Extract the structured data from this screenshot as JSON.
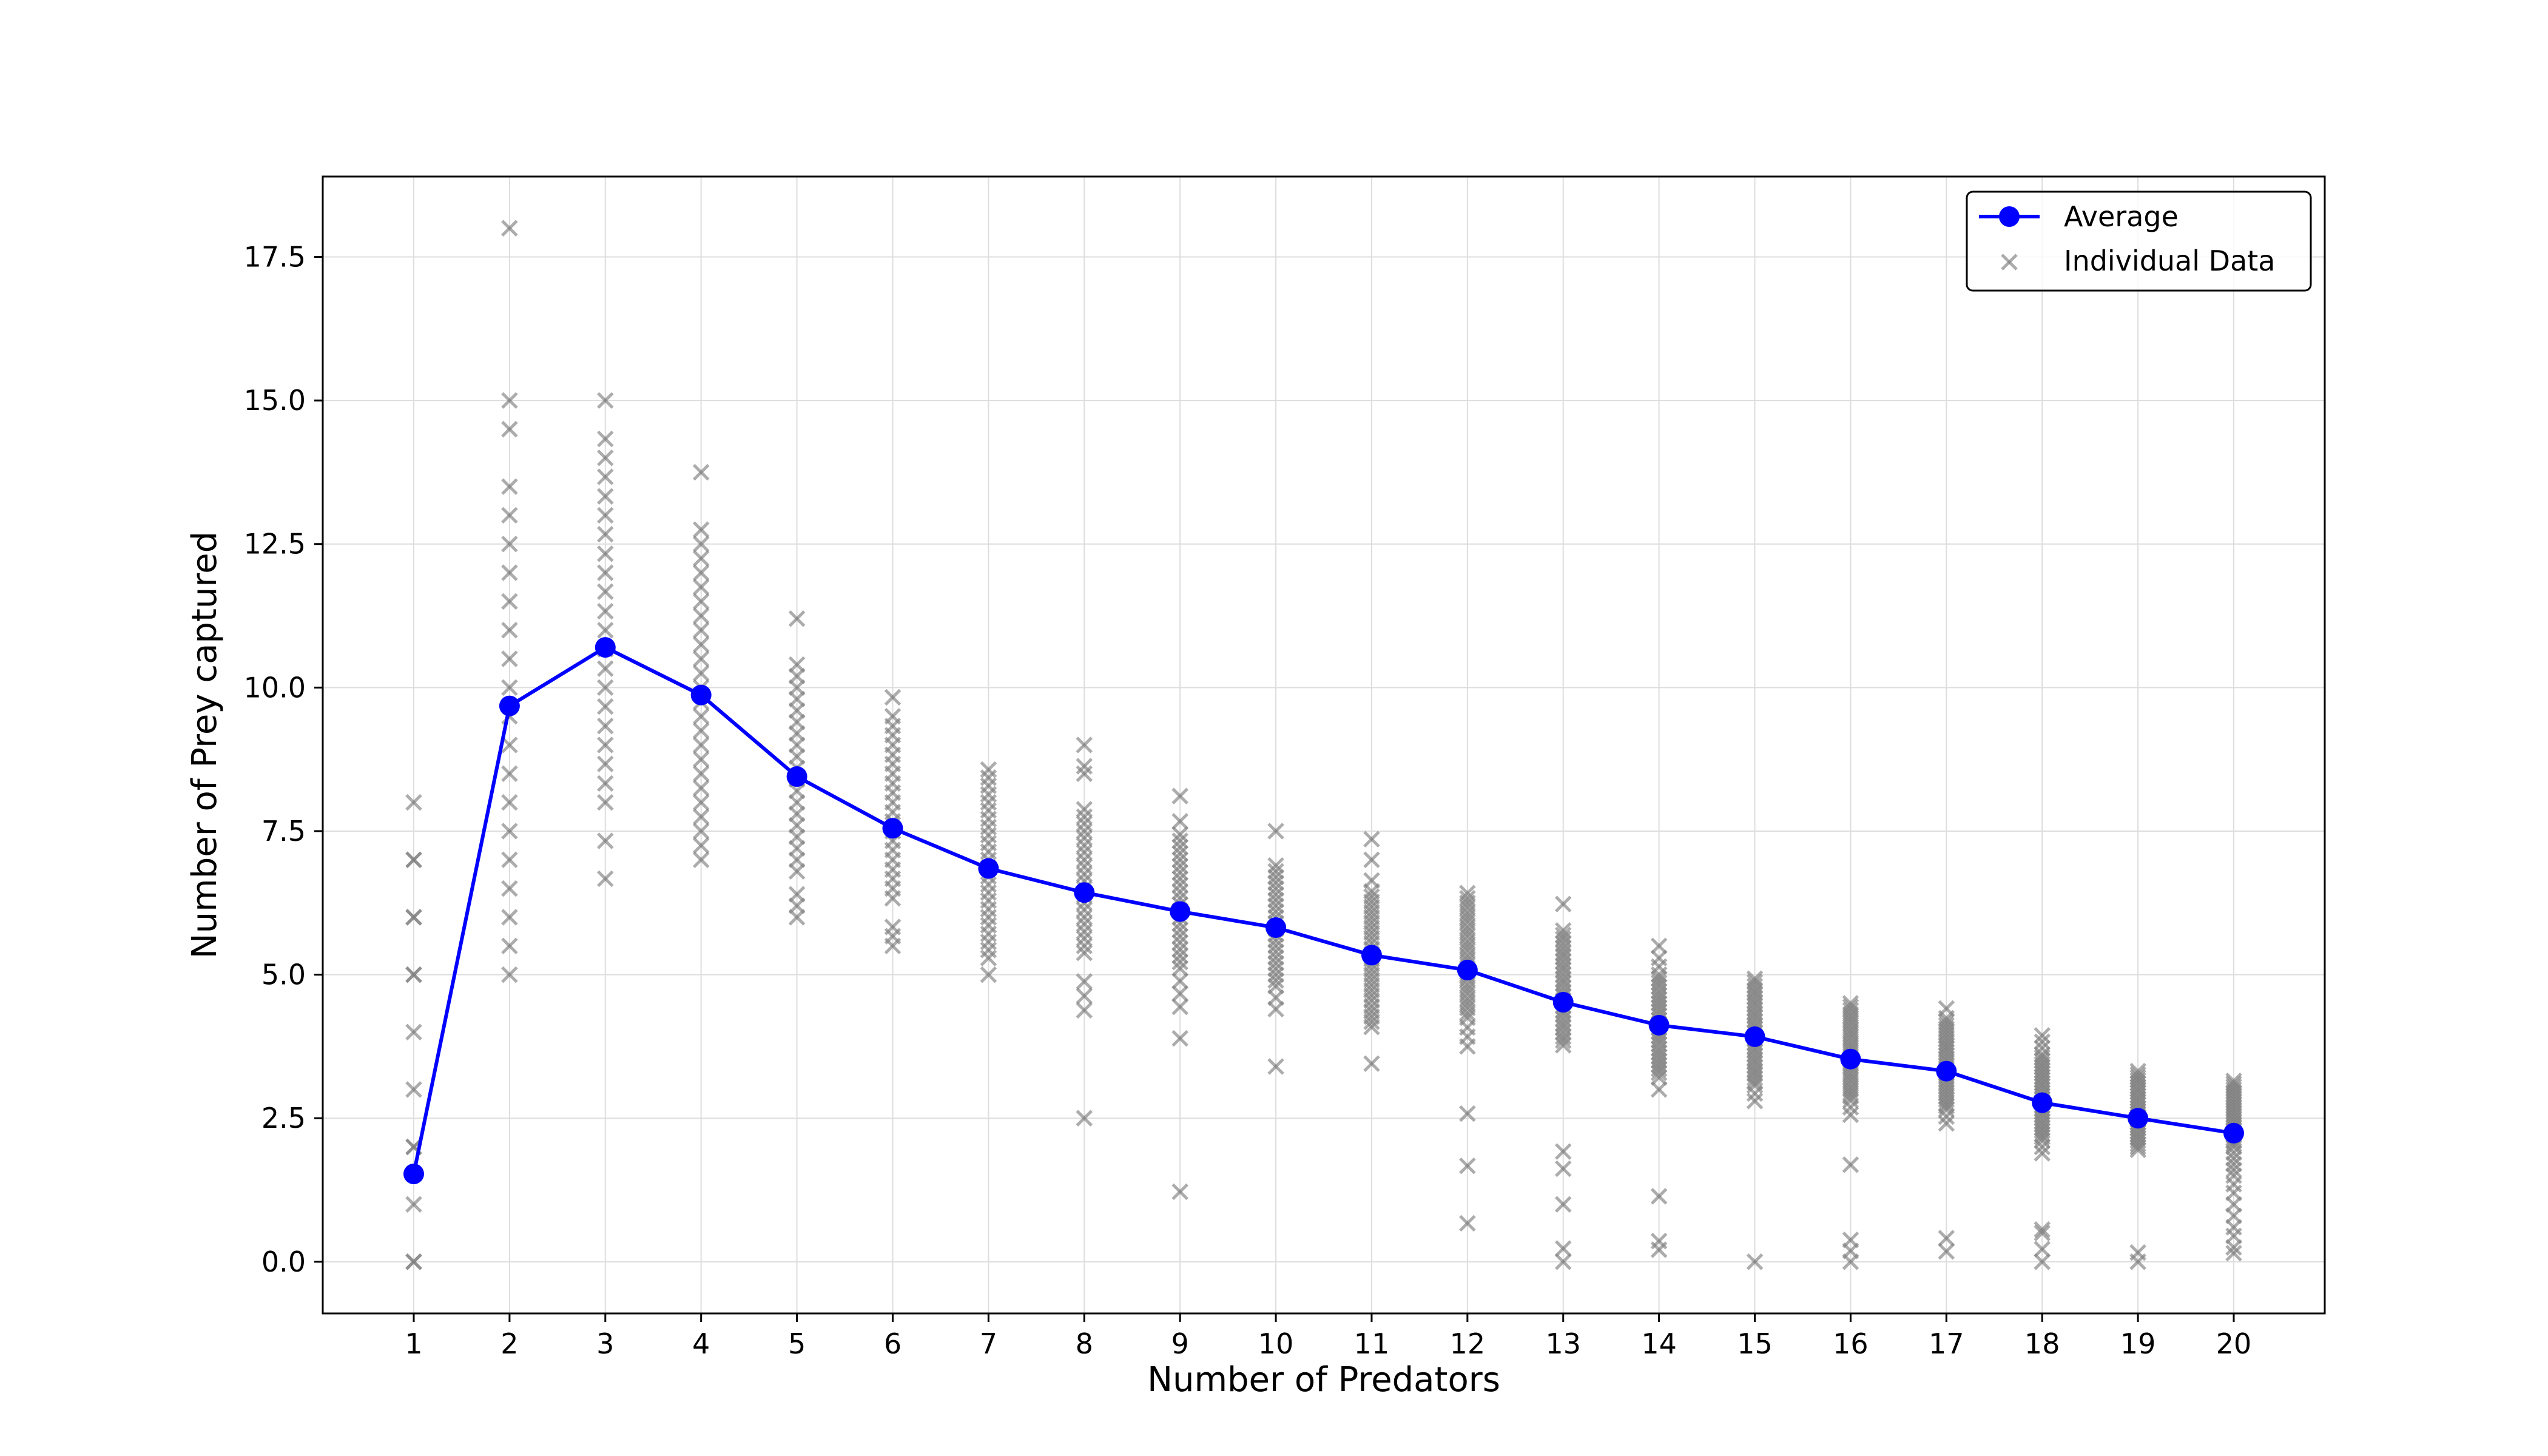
{
  "chart_data": {
    "type": "line",
    "title": "",
    "xlabel": "Number of Predators",
    "ylabel": "Number of Prey captured",
    "xlim": [
      0.05,
      20.95
    ],
    "ylim": [
      -0.9,
      18.9
    ],
    "x_ticks": [
      1,
      2,
      3,
      4,
      5,
      6,
      7,
      8,
      9,
      10,
      11,
      12,
      13,
      14,
      15,
      16,
      17,
      18,
      19,
      20
    ],
    "y_ticks": [
      0.0,
      2.5,
      5.0,
      7.5,
      10.0,
      12.5,
      15.0,
      17.5
    ],
    "y_tick_labels": [
      "0.0",
      "2.5",
      "5.0",
      "7.5",
      "10.0",
      "12.5",
      "15.0",
      "17.5"
    ],
    "grid": true,
    "legend_position": "top-right",
    "colors": {
      "average": "#0000ff",
      "individual": "#808080"
    },
    "series": [
      {
        "name": "Average",
        "style": "line-marker",
        "x": [
          1,
          2,
          3,
          4,
          5,
          6,
          7,
          8,
          9,
          10,
          11,
          12,
          13,
          14,
          15,
          16,
          17,
          18,
          19,
          20
        ],
        "values": [
          1.53,
          9.68,
          10.7,
          9.87,
          8.45,
          7.55,
          6.85,
          6.43,
          6.1,
          5.82,
          5.34,
          5.08,
          4.52,
          4.12,
          3.92,
          3.53,
          3.32,
          2.77,
          2.5,
          2.24
        ]
      },
      {
        "name": "Individual Data",
        "style": "scatter-x",
        "points": [
          [
            1,
            [
              0,
              0,
              1,
              2,
              2,
              3,
              4,
              5,
              5,
              6,
              6,
              7,
              7,
              8
            ]
          ],
          [
            2,
            [
              5,
              5.5,
              6,
              6.5,
              7,
              7.5,
              8,
              8.5,
              9,
              9.5,
              10,
              10.5,
              11,
              11.5,
              12,
              12.5,
              13,
              13.5,
              14.5,
              15,
              18
            ]
          ],
          [
            3,
            [
              6.67,
              7.33,
              8,
              8.33,
              8.67,
              9,
              9.33,
              9.67,
              10,
              10.33,
              10.67,
              11,
              11.33,
              11.67,
              12,
              12.33,
              12.67,
              13,
              13.33,
              13.67,
              14,
              14.33,
              15
            ]
          ],
          [
            4,
            [
              7,
              7.25,
              7.5,
              7.75,
              8,
              8.25,
              8.5,
              8.75,
              9,
              9.25,
              9.5,
              9.75,
              10,
              10.25,
              10.5,
              10.75,
              11,
              11.25,
              11.5,
              11.75,
              12,
              12.25,
              12.5,
              12.75,
              13.75
            ]
          ],
          [
            5,
            [
              6,
              6.2,
              6.4,
              6.8,
              7,
              7.2,
              7.4,
              7.6,
              7.8,
              8,
              8.2,
              8.4,
              8.6,
              8.8,
              9,
              9.2,
              9.4,
              9.6,
              9.8,
              10,
              10.2,
              10.4,
              11.2
            ]
          ],
          [
            6,
            [
              5.5,
              5.67,
              5.83,
              6.33,
              6.5,
              6.67,
              6.83,
              7,
              7.17,
              7.33,
              7.5,
              7.67,
              7.83,
              8,
              8.17,
              8.33,
              8.5,
              8.67,
              8.83,
              9,
              9.17,
              9.33,
              9.5,
              9.83
            ]
          ],
          [
            7,
            [
              5,
              5.29,
              5.43,
              5.57,
              5.71,
              5.86,
              6,
              6.14,
              6.29,
              6.43,
              6.57,
              6.71,
              6.86,
              7,
              7.14,
              7.29,
              7.43,
              7.57,
              7.71,
              7.86,
              8,
              8.14,
              8.29,
              8.43,
              8.57
            ]
          ],
          [
            8,
            [
              2.5,
              4.38,
              4.63,
              4.88,
              5.38,
              5.5,
              5.63,
              5.75,
              5.88,
              6,
              6.13,
              6.25,
              6.38,
              6.5,
              6.63,
              6.75,
              6.88,
              7,
              7.13,
              7.25,
              7.38,
              7.5,
              7.63,
              7.75,
              7.88,
              8.5,
              8.63,
              9
            ]
          ],
          [
            9,
            [
              1.22,
              3.89,
              4.44,
              4.67,
              4.89,
              5.11,
              5.22,
              5.33,
              5.44,
              5.56,
              5.67,
              5.78,
              5.89,
              6,
              6.11,
              6.22,
              6.33,
              6.44,
              6.56,
              6.67,
              6.78,
              6.89,
              7,
              7.11,
              7.22,
              7.33,
              7.44,
              7.67,
              8.11
            ]
          ],
          [
            10,
            [
              3.4,
              4.4,
              4.6,
              4.8,
              4.9,
              5,
              5.1,
              5.2,
              5.3,
              5.4,
              5.5,
              5.6,
              5.7,
              5.8,
              5.9,
              6,
              6.1,
              6.2,
              6.3,
              6.4,
              6.5,
              6.6,
              6.7,
              6.8,
              6.9,
              7.5
            ]
          ],
          [
            11,
            [
              3.45,
              4.09,
              4.18,
              4.27,
              4.36,
              4.45,
              4.55,
              4.64,
              4.73,
              4.82,
              4.91,
              5,
              5.09,
              5.18,
              5.27,
              5.36,
              5.45,
              5.55,
              5.64,
              5.73,
              5.82,
              5.91,
              6,
              6.09,
              6.18,
              6.27,
              6.36,
              6.45,
              6.64,
              7,
              7.36
            ]
          ],
          [
            12,
            [
              0.67,
              1.67,
              2.58,
              3.75,
              3.92,
              4.08,
              4.25,
              4.33,
              4.42,
              4.5,
              4.58,
              4.67,
              4.75,
              4.83,
              4.92,
              5,
              5.08,
              5.17,
              5.25,
              5.33,
              5.42,
              5.5,
              5.58,
              5.67,
              5.75,
              5.83,
              5.92,
              6,
              6.08,
              6.17,
              6.25,
              6.33,
              6.42
            ]
          ],
          [
            13,
            [
              0,
              0.23,
              1,
              1.62,
              1.92,
              3.77,
              3.85,
              3.92,
              4,
              4.08,
              4.15,
              4.23,
              4.31,
              4.38,
              4.46,
              4.54,
              4.62,
              4.69,
              4.77,
              4.85,
              4.92,
              5,
              5.08,
              5.15,
              5.23,
              5.31,
              5.38,
              5.46,
              5.54,
              5.62,
              5.69,
              5.77,
              6.23
            ]
          ],
          [
            14,
            [
              0.21,
              0.36,
              1.14,
              3,
              3.21,
              3.29,
              3.36,
              3.43,
              3.5,
              3.57,
              3.64,
              3.71,
              3.79,
              3.86,
              3.93,
              4,
              4.07,
              4.14,
              4.21,
              4.29,
              4.36,
              4.43,
              4.5,
              4.57,
              4.64,
              4.71,
              4.79,
              4.86,
              4.93,
              5,
              5.14,
              5.29,
              5.5
            ]
          ],
          [
            15,
            [
              0,
              2.8,
              2.93,
              3.07,
              3.13,
              3.2,
              3.27,
              3.33,
              3.4,
              3.47,
              3.53,
              3.6,
              3.67,
              3.73,
              3.8,
              3.87,
              3.93,
              4,
              4.07,
              4.13,
              4.2,
              4.27,
              4.33,
              4.4,
              4.47,
              4.53,
              4.6,
              4.67,
              4.73,
              4.8,
              4.87,
              4.93
            ]
          ],
          [
            16,
            [
              0,
              0.19,
              0.38,
              1.69,
              2.56,
              2.69,
              2.81,
              2.88,
              2.94,
              3,
              3.06,
              3.13,
              3.19,
              3.25,
              3.31,
              3.38,
              3.44,
              3.5,
              3.56,
              3.63,
              3.69,
              3.75,
              3.81,
              3.88,
              3.94,
              4,
              4.06,
              4.13,
              4.19,
              4.25,
              4.31,
              4.38,
              4.44,
              4.5
            ]
          ],
          [
            17,
            [
              0.18,
              0.41,
              2.41,
              2.53,
              2.65,
              2.71,
              2.76,
              2.82,
              2.88,
              2.94,
              3,
              3.06,
              3.12,
              3.18,
              3.24,
              3.29,
              3.35,
              3.41,
              3.47,
              3.53,
              3.59,
              3.65,
              3.71,
              3.76,
              3.82,
              3.88,
              3.94,
              4,
              4.06,
              4.12,
              4.18,
              4.24,
              4.41
            ]
          ],
          [
            18,
            [
              0,
              0.22,
              0.5,
              0.56,
              1.89,
              2,
              2.11,
              2.17,
              2.22,
              2.28,
              2.33,
              2.39,
              2.44,
              2.5,
              2.56,
              2.61,
              2.67,
              2.72,
              2.78,
              2.83,
              2.89,
              2.94,
              3,
              3.06,
              3.11,
              3.17,
              3.22,
              3.28,
              3.33,
              3.39,
              3.44,
              3.5,
              3.56,
              3.61,
              3.72,
              3.83,
              3.94
            ]
          ],
          [
            19,
            [
              0,
              0.16,
              1.95,
              2,
              2.05,
              2.11,
              2.16,
              2.21,
              2.26,
              2.32,
              2.37,
              2.42,
              2.47,
              2.53,
              2.58,
              2.63,
              2.68,
              2.74,
              2.79,
              2.84,
              2.89,
              2.95,
              3,
              3.05,
              3.11,
              3.16,
              3.21,
              3.26,
              3.32
            ]
          ],
          [
            20,
            [
              0.15,
              0.25,
              0.45,
              0.6,
              0.8,
              1,
              1.2,
              1.35,
              1.5,
              1.6,
              1.7,
              1.8,
              1.9,
              2,
              2.05,
              2.1,
              2.15,
              2.2,
              2.25,
              2.3,
              2.35,
              2.4,
              2.45,
              2.5,
              2.55,
              2.6,
              2.65,
              2.7,
              2.75,
              2.8,
              2.85,
              2.9,
              2.95,
              3,
              3.05,
              3.1,
              3.15
            ]
          ]
        ]
      }
    ]
  }
}
